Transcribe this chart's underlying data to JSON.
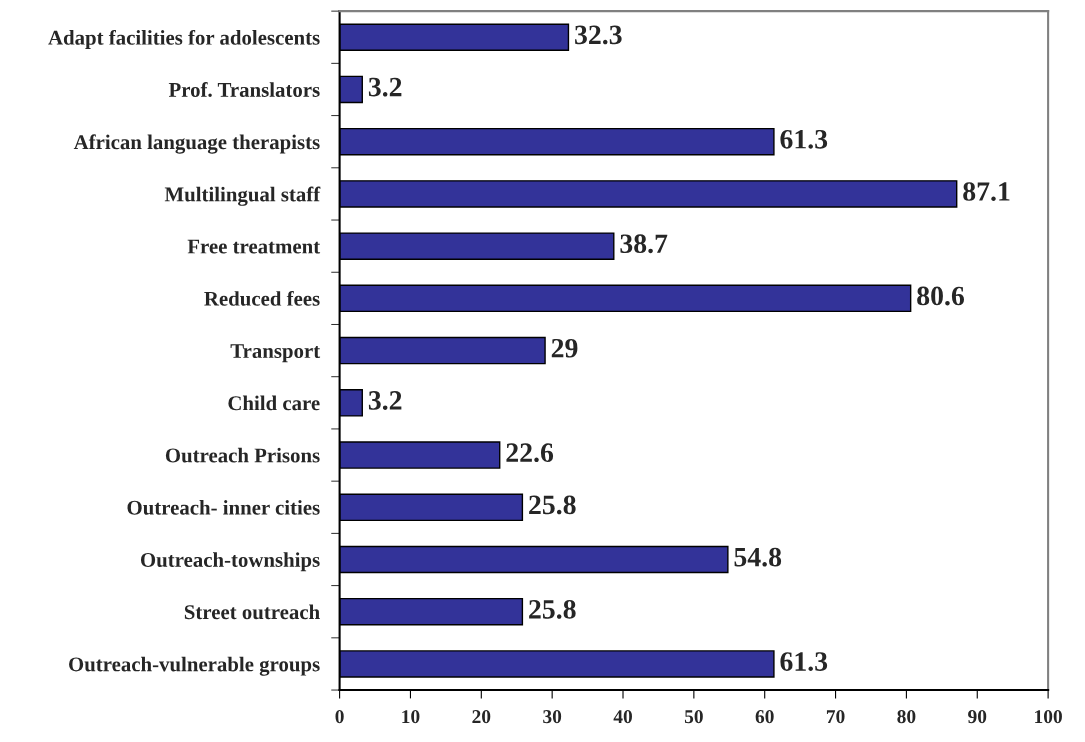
{
  "chart_data": {
    "type": "bar",
    "orientation": "horizontal",
    "categories": [
      "Adapt facilities for adolescents",
      "Prof. Translators",
      "African language therapists",
      "Multilingual staff",
      "Free treatment",
      "Reduced fees",
      "Transport",
      "Child care",
      "Outreach Prisons",
      "Outreach- inner cities",
      "Outreach-townships",
      "Street outreach",
      "Outreach-vulnerable groups"
    ],
    "values": [
      32.3,
      3.2,
      61.3,
      87.1,
      38.7,
      80.6,
      29,
      3.2,
      22.6,
      25.8,
      54.8,
      25.8,
      61.3
    ],
    "color": "#333399",
    "xlim": [
      0,
      100
    ],
    "xticks": [
      0,
      10,
      20,
      30,
      40,
      50,
      60,
      70,
      80,
      90,
      100
    ],
    "data_labels": true,
    "grid": false,
    "legend": false
  }
}
